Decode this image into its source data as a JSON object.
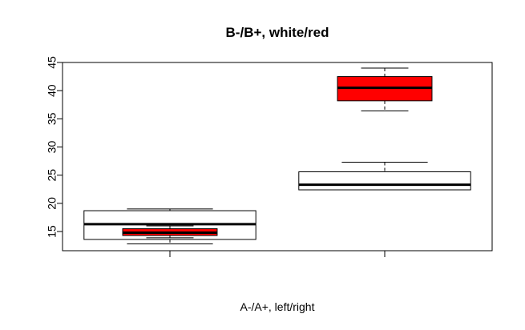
{
  "chart_data": {
    "type": "boxplot",
    "title": "B-/B+, white/red",
    "xlabel": "A-/A+, left/right",
    "ylabel": "",
    "categories": [
      "A-",
      "A+"
    ],
    "ylim": [
      11.6,
      45
    ],
    "yticks": [
      15,
      20,
      25,
      30,
      35,
      40,
      45
    ],
    "series": [
      {
        "name": "B-",
        "color": "#ffffff",
        "boxes": [
          {
            "min": 12.8,
            "q1": 13.6,
            "median": 16.3,
            "q3": 18.7,
            "max": 19.0
          },
          {
            "min": 22.4,
            "q1": 22.4,
            "median": 23.3,
            "q3": 25.6,
            "max": 27.3
          }
        ]
      },
      {
        "name": "B+",
        "color": "#ff0000",
        "boxes": [
          {
            "min": 13.9,
            "q1": 14.3,
            "median": 14.8,
            "q3": 15.5,
            "max": 16.0
          },
          {
            "min": 36.4,
            "q1": 38.2,
            "median": 40.5,
            "q3": 42.5,
            "max": 44.0
          }
        ]
      }
    ],
    "grid": false,
    "legend": "none"
  }
}
